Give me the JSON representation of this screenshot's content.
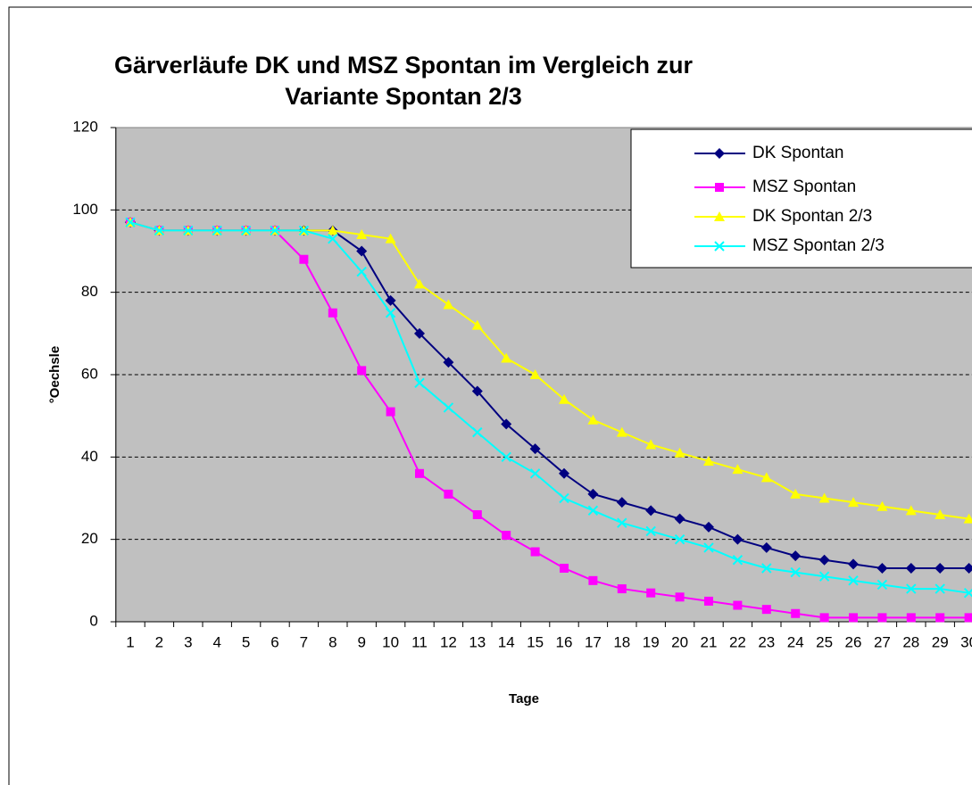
{
  "chart_data": {
    "type": "line",
    "title": [
      "Gärverläufe DK und MSZ Spontan im Vergleich zur",
      "Variante Spontan 2/3"
    ],
    "x_label": "Tage",
    "y_label": "°Oechsle",
    "categories": [
      "1",
      "2",
      "3",
      "4",
      "5",
      "6",
      "7",
      "8",
      "9",
      "10",
      "11",
      "12",
      "13",
      "14",
      "15",
      "16",
      "17",
      "18",
      "19",
      "20",
      "21",
      "22",
      "23",
      "24",
      "25",
      "26",
      "27",
      "28",
      "29",
      "30"
    ],
    "series": [
      {
        "name": "DK Spontan",
        "color": "#000080",
        "marker": "diamond",
        "values": [
          97,
          95,
          95,
          95,
          95,
          95,
          95,
          95,
          90,
          78,
          70,
          63,
          56,
          48,
          42,
          36,
          31,
          29,
          27,
          25,
          23,
          20,
          18,
          16,
          15,
          14,
          13,
          13,
          13,
          13
        ]
      },
      {
        "name": "MSZ Spontan",
        "color": "#ff00ff",
        "marker": "square",
        "values": [
          97,
          95,
          95,
          95,
          95,
          95,
          88,
          75,
          61,
          51,
          36,
          31,
          26,
          21,
          17,
          13,
          10,
          8,
          7,
          6,
          5,
          4,
          3,
          2,
          1,
          1,
          1,
          1,
          1,
          1
        ]
      },
      {
        "name": "DK Spontan 2/3",
        "color": "#ffff00",
        "marker": "triangle",
        "values": [
          97,
          95,
          95,
          95,
          95,
          95,
          95,
          95,
          94,
          93,
          82,
          77,
          72,
          64,
          60,
          54,
          49,
          46,
          43,
          41,
          39,
          37,
          35,
          31,
          30,
          29,
          28,
          27,
          26,
          25
        ]
      },
      {
        "name": "MSZ Spontan 2/3",
        "color": "#00ffff",
        "marker": "x",
        "values": [
          97,
          95,
          95,
          95,
          95,
          95,
          95,
          93,
          85,
          75,
          58,
          52,
          46,
          40,
          36,
          30,
          27,
          24,
          22,
          20,
          18,
          15,
          13,
          12,
          11,
          10,
          9,
          8,
          8,
          7
        ]
      }
    ],
    "ylim": [
      0,
      120
    ],
    "yticks": [
      0,
      20,
      40,
      60,
      80,
      100,
      120
    ],
    "grid": true,
    "legend": "top-right"
  }
}
